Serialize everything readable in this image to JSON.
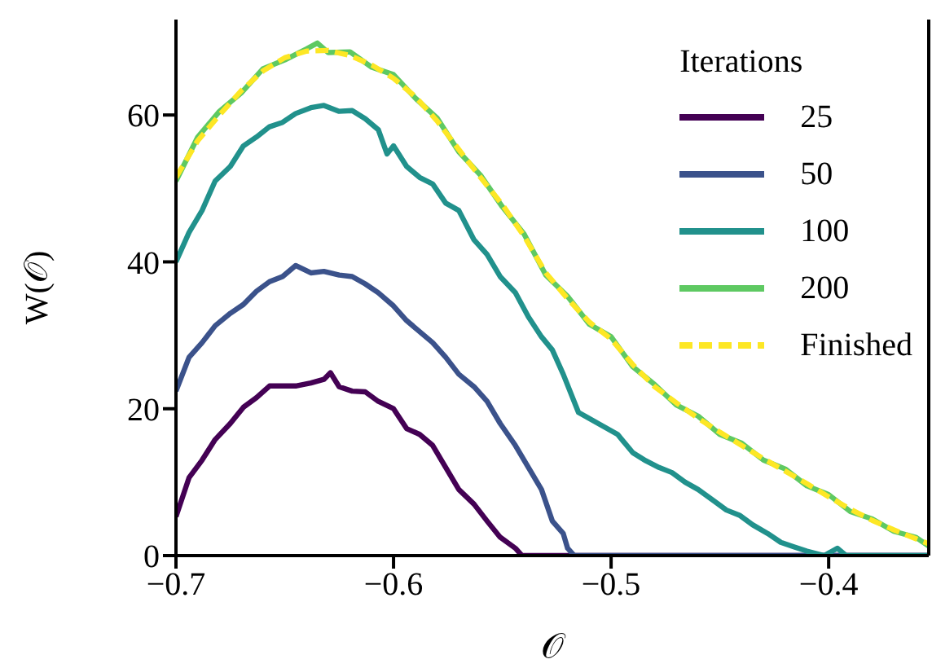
{
  "chart_data": {
    "type": "line",
    "xlabel": "𝒪",
    "ylabel": "W(𝒪)",
    "legend_title": "Iterations",
    "legend": "top right",
    "grid": false,
    "marker": "none",
    "xlim": [
      -0.7,
      -0.354
    ],
    "ylim": [
      0,
      73
    ],
    "xticks": [
      {
        "value": -0.7,
        "label": "−0.7"
      },
      {
        "value": -0.6,
        "label": "−0.6"
      },
      {
        "value": -0.5,
        "label": "−0.5"
      },
      {
        "value": -0.4,
        "label": "−0.4"
      }
    ],
    "yticks": [
      0,
      20,
      40,
      60
    ],
    "series": [
      {
        "name": "25",
        "color": "#440154",
        "x": [
          -0.7,
          -0.694,
          -0.688,
          -0.682,
          -0.675,
          -0.669,
          -0.663,
          -0.657,
          -0.651,
          -0.645,
          -0.638,
          -0.632,
          -0.629,
          -0.625,
          -0.619,
          -0.613,
          -0.607,
          -0.6,
          -0.594,
          -0.588,
          -0.582,
          -0.576,
          -0.57,
          -0.563,
          -0.557,
          -0.551,
          -0.544,
          -0.541,
          -0.52,
          -0.48,
          -0.44,
          -0.4,
          -0.354
        ],
        "values": [
          5.3,
          10.6,
          13,
          15.8,
          18,
          20.2,
          21.5,
          23.1,
          23.1,
          23.1,
          23.5,
          24,
          24.9,
          23,
          22.4,
          22.3,
          21,
          20,
          17.3,
          16.5,
          15,
          12,
          9,
          7,
          4.7,
          2.5,
          1,
          0,
          0,
          0,
          0,
          0,
          0
        ]
      },
      {
        "name": "50",
        "color": "#3b528b",
        "x": [
          -0.7,
          -0.694,
          -0.688,
          -0.682,
          -0.675,
          -0.669,
          -0.663,
          -0.657,
          -0.651,
          -0.645,
          -0.638,
          -0.632,
          -0.625,
          -0.619,
          -0.613,
          -0.607,
          -0.6,
          -0.594,
          -0.588,
          -0.582,
          -0.576,
          -0.57,
          -0.563,
          -0.557,
          -0.551,
          -0.544,
          -0.538,
          -0.532,
          -0.527,
          -0.522,
          -0.52,
          -0.517,
          -0.48,
          -0.44,
          -0.4,
          -0.354
        ],
        "values": [
          22.4,
          27,
          29,
          31.3,
          33,
          34.2,
          36,
          37.3,
          38,
          39.5,
          38.5,
          38.7,
          38.2,
          38,
          37,
          35.8,
          34,
          32,
          30.5,
          29,
          27,
          24.7,
          23,
          21,
          18,
          15,
          12,
          9,
          4.7,
          3,
          1,
          0,
          0,
          0,
          0,
          0
        ]
      },
      {
        "name": "100",
        "color": "#21918c",
        "x": [
          -0.7,
          -0.694,
          -0.688,
          -0.682,
          -0.675,
          -0.669,
          -0.663,
          -0.657,
          -0.651,
          -0.645,
          -0.638,
          -0.632,
          -0.625,
          -0.619,
          -0.613,
          -0.607,
          -0.603,
          -0.6,
          -0.594,
          -0.588,
          -0.582,
          -0.576,
          -0.57,
          -0.563,
          -0.557,
          -0.551,
          -0.544,
          -0.538,
          -0.532,
          -0.527,
          -0.522,
          -0.515,
          -0.506,
          -0.497,
          -0.49,
          -0.484,
          -0.478,
          -0.472,
          -0.466,
          -0.46,
          -0.453,
          -0.447,
          -0.441,
          -0.435,
          -0.428,
          -0.422,
          -0.416,
          -0.41,
          -0.402,
          -0.396,
          -0.392,
          -0.38,
          -0.354
        ],
        "values": [
          40,
          44,
          47,
          51,
          53,
          55.8,
          57,
          58.4,
          59,
          60.2,
          61,
          61.3,
          60.5,
          60.6,
          59.5,
          58,
          54.7,
          55.8,
          53,
          51.5,
          50.6,
          48,
          47,
          43,
          41,
          38,
          35.8,
          32.5,
          29.8,
          28,
          24.7,
          19.5,
          18,
          16.5,
          14,
          12.9,
          12,
          11.3,
          10,
          9,
          7.5,
          6.2,
          5.5,
          4.2,
          3,
          1.8,
          1.2,
          0.6,
          0,
          1,
          0,
          0,
          0
        ]
      },
      {
        "name": "200",
        "color": "#5ec962",
        "x": [
          -0.7,
          -0.69,
          -0.68,
          -0.67,
          -0.66,
          -0.65,
          -0.64,
          -0.635,
          -0.63,
          -0.62,
          -0.61,
          -0.6,
          -0.59,
          -0.58,
          -0.57,
          -0.56,
          -0.55,
          -0.54,
          -0.53,
          -0.52,
          -0.51,
          -0.5,
          -0.49,
          -0.48,
          -0.47,
          -0.46,
          -0.45,
          -0.44,
          -0.43,
          -0.42,
          -0.41,
          -0.4,
          -0.39,
          -0.38,
          -0.37,
          -0.36,
          -0.354
        ],
        "values": [
          51,
          57,
          60.5,
          63,
          66.3,
          67.5,
          69,
          69.8,
          68.5,
          68.6,
          66.5,
          65.5,
          62.3,
          59.6,
          55,
          51.8,
          47.5,
          43.8,
          38.2,
          35.3,
          31.5,
          29.8,
          25.7,
          23.3,
          20.5,
          19,
          16.5,
          15.3,
          13,
          11.8,
          9.5,
          8.3,
          6,
          5,
          3.3,
          2.5,
          1.3
        ]
      },
      {
        "name": "Finished",
        "color": "#fde725",
        "line_style": "dashed",
        "x": [
          -0.7,
          -0.69,
          -0.68,
          -0.67,
          -0.66,
          -0.65,
          -0.64,
          -0.63,
          -0.62,
          -0.61,
          -0.6,
          -0.59,
          -0.58,
          -0.57,
          -0.56,
          -0.55,
          -0.54,
          -0.53,
          -0.52,
          -0.51,
          -0.5,
          -0.49,
          -0.48,
          -0.47,
          -0.46,
          -0.45,
          -0.44,
          -0.43,
          -0.42,
          -0.41,
          -0.4,
          -0.39,
          -0.38,
          -0.37,
          -0.36,
          -0.354
        ],
        "values": [
          51.5,
          56.5,
          60,
          63.3,
          66,
          67.8,
          68.7,
          68.8,
          68.1,
          66.8,
          65,
          62.5,
          59.2,
          55.3,
          51.5,
          47.8,
          43.5,
          38.5,
          35,
          31.8,
          29.5,
          26,
          23,
          20.8,
          18.7,
          16.8,
          15,
          13.2,
          11.5,
          9.8,
          8,
          6.3,
          4.8,
          3.5,
          2.3,
          1.6
        ]
      }
    ]
  }
}
